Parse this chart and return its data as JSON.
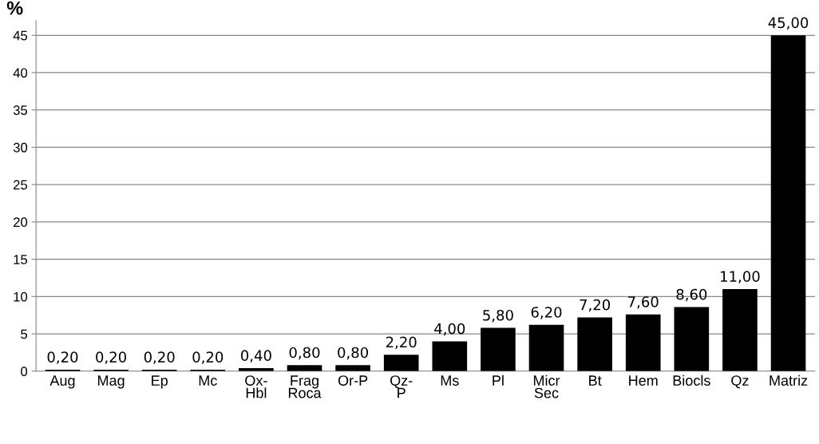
{
  "chart_data": {
    "type": "bar",
    "ylabel": "%",
    "categories": [
      "Aug",
      "Mag",
      "Ep",
      "Mc",
      "Ox-\nHbl",
      "Frag\nRoca",
      "Or-P",
      "Qz-\nP",
      "Ms",
      "Pl",
      "Micr\nSec",
      "Bt",
      "Hem",
      "Biocls",
      "Qz",
      "Matriz"
    ],
    "values": [
      0.2,
      0.2,
      0.2,
      0.2,
      0.4,
      0.8,
      0.8,
      2.2,
      4.0,
      5.8,
      6.2,
      7.2,
      7.6,
      8.6,
      11.0,
      45.0
    ],
    "value_labels": [
      "0,20",
      "0,20",
      "0,20",
      "0,20",
      "0,40",
      "0,80",
      "0,80",
      "2,20",
      "4,00",
      "5,80",
      "6,20",
      "7,20",
      "7,60",
      "8,60",
      "11,00",
      "45,00"
    ],
    "color": "#000000",
    "ylim": [
      0,
      47
    ],
    "yticks": [
      0,
      5,
      10,
      15,
      20,
      25,
      30,
      35,
      40,
      45
    ],
    "grid": "y"
  }
}
